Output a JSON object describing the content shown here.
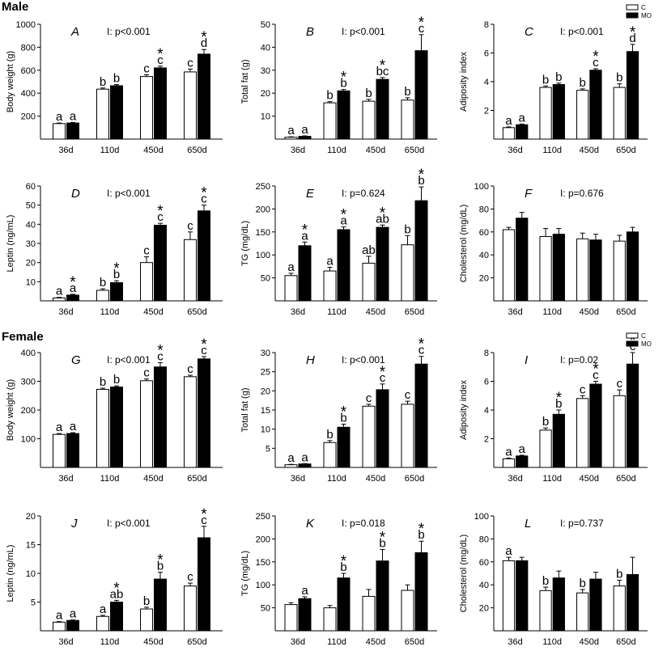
{
  "sections": {
    "male": "Male",
    "female": "Female"
  },
  "legend": {
    "control": "C",
    "mo": "MO"
  },
  "colors": {
    "control_fill": "#ffffff",
    "mo_fill": "#000000",
    "axis": "#000000"
  },
  "chart_data": [
    {
      "id": "A",
      "type": "bar",
      "title": "A",
      "stat": "I: p<0.001",
      "ylabel": "Body weight (g)",
      "ylim": [
        0,
        1000
      ],
      "yticks": [
        200,
        400,
        600,
        800,
        1000
      ],
      "categories": [
        "36d",
        "110d",
        "450d",
        "650d"
      ],
      "series": [
        {
          "name": "C",
          "values": [
            135,
            435,
            545,
            585
          ],
          "errors": [
            5,
            10,
            15,
            25
          ],
          "labels": [
            "a",
            "b",
            "c",
            "c"
          ],
          "stars": [
            false,
            false,
            false,
            false
          ]
        },
        {
          "name": "MO",
          "values": [
            140,
            465,
            620,
            740
          ],
          "errors": [
            5,
            10,
            15,
            40
          ],
          "labels": [
            "a",
            "b",
            "c",
            "d"
          ],
          "stars": [
            false,
            false,
            true,
            true
          ]
        }
      ]
    },
    {
      "id": "B",
      "type": "bar",
      "title": "B",
      "stat": "I: p<0.001",
      "ylabel": "Total fat (g)",
      "ylim": [
        0,
        50
      ],
      "yticks": [
        10,
        20,
        30,
        40,
        50
      ],
      "categories": [
        "36d",
        "110d",
        "450d",
        "650d"
      ],
      "series": [
        {
          "name": "C",
          "values": [
            0.8,
            15.8,
            16.5,
            17
          ],
          "errors": [
            0.2,
            0.5,
            0.8,
            1.0
          ],
          "labels": [
            "a",
            "b",
            "b",
            "b"
          ],
          "stars": [
            false,
            false,
            false,
            false
          ]
        },
        {
          "name": "MO",
          "values": [
            1.2,
            21,
            26,
            38.5
          ],
          "errors": [
            0.2,
            0.6,
            0.8,
            7
          ],
          "labels": [
            "a",
            "b",
            "bc",
            "c"
          ],
          "stars": [
            false,
            true,
            true,
            true
          ]
        }
      ]
    },
    {
      "id": "C",
      "type": "bar",
      "title": "C",
      "stat": "I: p<0.001",
      "ylabel": "Adiposity index",
      "ylim": [
        0,
        8
      ],
      "yticks": [
        2,
        4,
        6,
        8
      ],
      "categories": [
        "36d",
        "110d",
        "450d",
        "650d"
      ],
      "series": [
        {
          "name": "C",
          "values": [
            0.8,
            3.6,
            3.4,
            3.6
          ],
          "errors": [
            0.05,
            0.1,
            0.1,
            0.25
          ],
          "labels": [
            "a",
            "b",
            "b",
            "b"
          ],
          "stars": [
            false,
            false,
            false,
            false
          ]
        },
        {
          "name": "MO",
          "values": [
            1.0,
            3.8,
            4.8,
            6.1
          ],
          "errors": [
            0.05,
            0.1,
            0.1,
            0.5
          ],
          "labels": [
            "a",
            "b",
            "c",
            "d"
          ],
          "stars": [
            false,
            false,
            true,
            true
          ]
        }
      ]
    },
    {
      "id": "D",
      "type": "bar",
      "title": "D",
      "stat": "I: p<0.001",
      "ylabel": "Leptin (ng/mL)",
      "ylim": [
        0,
        60
      ],
      "yticks": [
        10,
        20,
        30,
        40,
        50,
        60
      ],
      "categories": [
        "36d",
        "110d",
        "450d",
        "650d"
      ],
      "series": [
        {
          "name": "C",
          "values": [
            1.5,
            5.5,
            20,
            32
          ],
          "errors": [
            0.3,
            0.8,
            3,
            4
          ],
          "labels": [
            "a",
            "b",
            "c",
            "c"
          ],
          "stars": [
            false,
            false,
            false,
            false
          ]
        },
        {
          "name": "MO",
          "values": [
            3,
            9.5,
            39.5,
            47
          ],
          "errors": [
            0.4,
            1,
            1,
            3
          ],
          "labels": [
            "a",
            "b",
            "c",
            "c"
          ],
          "stars": [
            true,
            true,
            true,
            true
          ]
        }
      ]
    },
    {
      "id": "E",
      "type": "bar",
      "title": "E",
      "stat": "I: p=0.624",
      "ylabel": "TG (mg/dL)",
      "ylim": [
        0,
        250
      ],
      "yticks": [
        50,
        100,
        150,
        200,
        250
      ],
      "categories": [
        "36d",
        "110d",
        "450d",
        "650d"
      ],
      "series": [
        {
          "name": "C",
          "values": [
            55,
            65,
            82,
            122
          ],
          "errors": [
            5,
            8,
            15,
            20
          ],
          "labels": [
            "a",
            "a",
            "ab",
            "b"
          ],
          "stars": [
            false,
            false,
            false,
            false
          ]
        },
        {
          "name": "MO",
          "values": [
            120,
            155,
            160,
            218
          ],
          "errors": [
            8,
            6,
            5,
            30
          ],
          "labels": [
            "a",
            "a",
            "ab",
            "b"
          ],
          "stars": [
            true,
            true,
            true,
            true
          ]
        }
      ]
    },
    {
      "id": "F",
      "type": "bar",
      "title": "F",
      "stat": "I: p=0.676",
      "ylabel": "Cholesterol (mg/dL)",
      "ylim": [
        0,
        100
      ],
      "yticks": [
        20,
        40,
        60,
        80,
        100
      ],
      "categories": [
        "36d",
        "110d",
        "450d",
        "650d"
      ],
      "series": [
        {
          "name": "C",
          "values": [
            62,
            56,
            54,
            52
          ],
          "errors": [
            2,
            7,
            5,
            5
          ],
          "labels": [
            "",
            "",
            "",
            ""
          ],
          "stars": [
            false,
            false,
            false,
            false
          ]
        },
        {
          "name": "MO",
          "values": [
            72,
            58,
            53,
            60
          ],
          "errors": [
            5,
            5,
            5,
            4
          ],
          "labels": [
            "",
            "",
            "",
            ""
          ],
          "stars": [
            false,
            false,
            false,
            false
          ]
        }
      ]
    },
    {
      "id": "G",
      "type": "bar",
      "title": "G",
      "stat": "I: p<0.001",
      "ylabel": "Body weight (g)",
      "ylim": [
        0,
        400
      ],
      "yticks": [
        100,
        200,
        300,
        400
      ],
      "categories": [
        "36d",
        "110d",
        "450d",
        "650d"
      ],
      "series": [
        {
          "name": "C",
          "values": [
            115,
            272,
            302,
            316
          ],
          "errors": [
            3,
            4,
            6,
            5
          ],
          "labels": [
            "a",
            "b",
            "c",
            "c"
          ],
          "stars": [
            false,
            false,
            false,
            false
          ]
        },
        {
          "name": "MO",
          "values": [
            118,
            280,
            350,
            378
          ],
          "errors": [
            3,
            4,
            15,
            8
          ],
          "labels": [
            "a",
            "b",
            "c",
            "c"
          ],
          "stars": [
            false,
            false,
            true,
            true
          ]
        }
      ]
    },
    {
      "id": "H",
      "type": "bar",
      "title": "H",
      "stat": "I: p<0.001",
      "ylabel": "Total fat (g)",
      "ylim": [
        0,
        30
      ],
      "yticks": [
        5,
        10,
        15,
        20,
        25,
        30
      ],
      "categories": [
        "36d",
        "110d",
        "450d",
        "650d"
      ],
      "series": [
        {
          "name": "C",
          "values": [
            0.7,
            6.5,
            16,
            16.5
          ],
          "errors": [
            0.1,
            0.5,
            0.5,
            0.8
          ],
          "labels": [
            "a",
            "b",
            "c",
            "c"
          ],
          "stars": [
            false,
            false,
            false,
            false
          ]
        },
        {
          "name": "MO",
          "values": [
            0.9,
            10.5,
            20.3,
            27
          ],
          "errors": [
            0.1,
            0.8,
            1.5,
            2
          ],
          "labels": [
            "a",
            "b",
            "c",
            "c"
          ],
          "stars": [
            false,
            true,
            true,
            true
          ]
        }
      ]
    },
    {
      "id": "I",
      "type": "bar",
      "title": "I",
      "stat": "I: p=0.02",
      "ylabel": "Adiposity index",
      "ylim": [
        0,
        8
      ],
      "yticks": [
        2,
        4,
        6,
        8
      ],
      "categories": [
        "36d",
        "110d",
        "450d",
        "650d"
      ],
      "series": [
        {
          "name": "C",
          "values": [
            0.6,
            2.6,
            4.8,
            5.0
          ],
          "errors": [
            0.05,
            0.15,
            0.2,
            0.4
          ],
          "labels": [
            "a",
            "b",
            "c",
            "c"
          ],
          "stars": [
            false,
            false,
            false,
            false
          ]
        },
        {
          "name": "MO",
          "values": [
            0.8,
            3.7,
            5.8,
            7.2
          ],
          "errors": [
            0.05,
            0.3,
            0.2,
            0.8
          ],
          "labels": [
            "a",
            "b",
            "c",
            "c"
          ],
          "stars": [
            false,
            true,
            true,
            true
          ]
        }
      ]
    },
    {
      "id": "J",
      "type": "bar",
      "title": "J",
      "stat": "I: p<0.001",
      "ylabel": "Leptin (ng/mL)",
      "ylim": [
        0,
        20
      ],
      "yticks": [
        5,
        10,
        15,
        20
      ],
      "categories": [
        "36d",
        "110d",
        "450d",
        "650d"
      ],
      "series": [
        {
          "name": "C",
          "values": [
            1.5,
            2.5,
            3.8,
            7.8
          ],
          "errors": [
            0.1,
            0.2,
            0.3,
            0.5
          ],
          "labels": [
            "a",
            "a",
            "b",
            "c"
          ],
          "stars": [
            false,
            false,
            false,
            false
          ]
        },
        {
          "name": "MO",
          "values": [
            1.8,
            5.0,
            9.0,
            16.2
          ],
          "errors": [
            0.1,
            0.3,
            1.2,
            2.0
          ],
          "labels": [
            "a",
            "ab",
            "b",
            "c"
          ],
          "stars": [
            false,
            true,
            true,
            true
          ]
        }
      ]
    },
    {
      "id": "K",
      "type": "bar",
      "title": "K",
      "stat": "I: p=0.018",
      "ylabel": "TG (mg/dL)",
      "ylim": [
        0,
        250
      ],
      "yticks": [
        50,
        100,
        150,
        200,
        250
      ],
      "categories": [
        "36d",
        "110d",
        "450d",
        "650d"
      ],
      "series": [
        {
          "name": "C",
          "values": [
            57,
            50,
            75,
            88
          ],
          "errors": [
            4,
            5,
            15,
            12
          ],
          "labels": [
            "",
            "",
            "",
            ""
          ],
          "stars": [
            false,
            false,
            false,
            false
          ]
        },
        {
          "name": "MO",
          "values": [
            70,
            115,
            152,
            170
          ],
          "errors": [
            4,
            10,
            25,
            25
          ],
          "labels": [
            "a",
            "b",
            "b",
            "b"
          ],
          "stars": [
            false,
            true,
            true,
            true
          ]
        }
      ]
    },
    {
      "id": "L",
      "type": "bar",
      "title": "L",
      "stat": "I: p=0.737",
      "ylabel": "Cholesterol (mg/dL)",
      "ylim": [
        0,
        100
      ],
      "yticks": [
        20,
        40,
        60,
        80,
        100
      ],
      "categories": [
        "36d",
        "110d",
        "450d",
        "650d"
      ],
      "series": [
        {
          "name": "C",
          "values": [
            61,
            35,
            33,
            39
          ],
          "errors": [
            3,
            3,
            3,
            5
          ],
          "labels": [
            "a",
            "b",
            "b",
            "b"
          ],
          "stars": [
            false,
            false,
            false,
            false
          ]
        },
        {
          "name": "MO",
          "values": [
            61,
            46,
            45,
            49
          ],
          "errors": [
            3,
            6,
            6,
            15
          ],
          "labels": [
            "",
            "",
            "",
            ""
          ],
          "stars": [
            false,
            false,
            false,
            false
          ]
        }
      ]
    }
  ]
}
